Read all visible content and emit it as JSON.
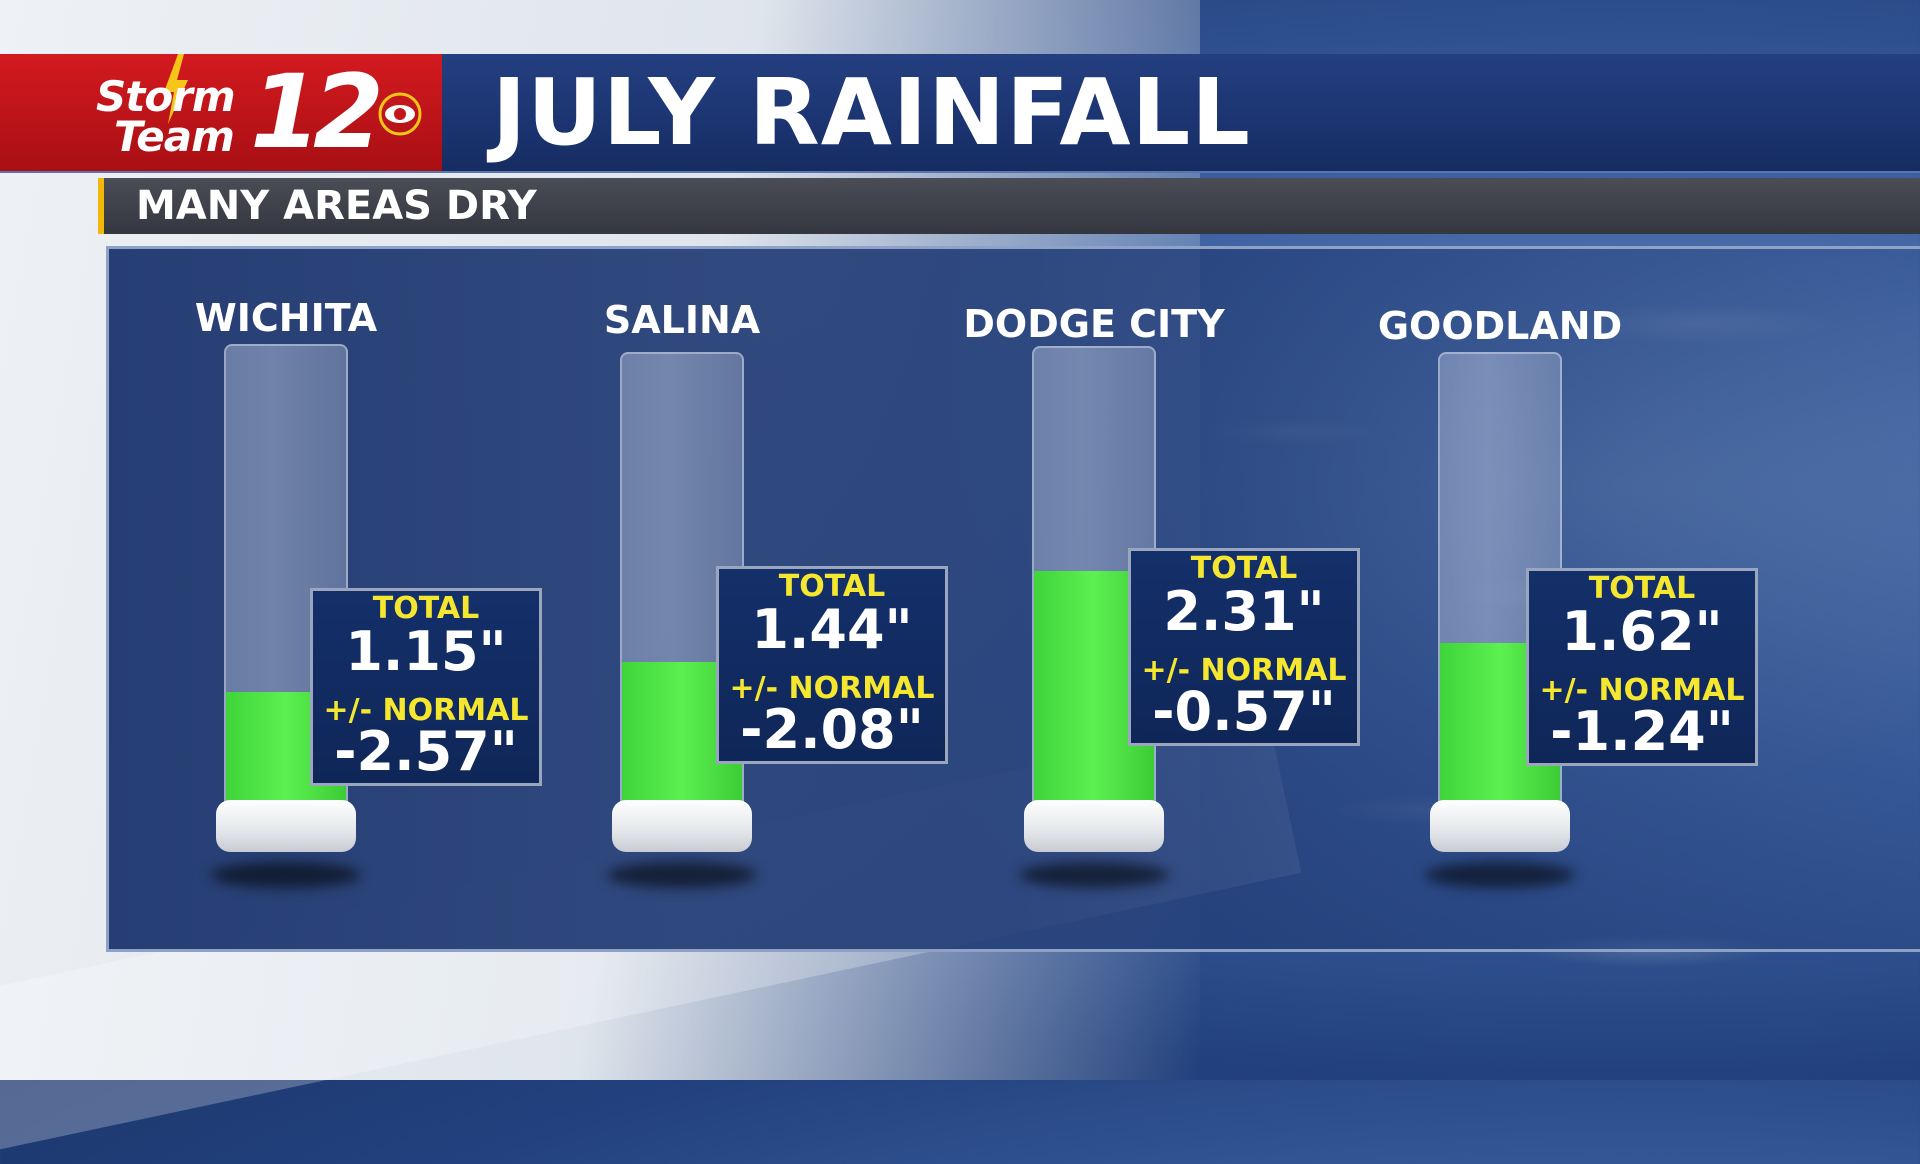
{
  "header": {
    "logo_line1": "Storm",
    "logo_line2": "Team",
    "logo_number": "12",
    "title": "JULY RAINFALL"
  },
  "subtitle": "MANY AREAS DRY",
  "colors": {
    "header_blue": "#1c3572",
    "logo_red": "#c4151b",
    "accent_yellow": "#f2b807",
    "label_yellow": "#f5e630",
    "gauge_green": "#4ef042"
  },
  "card_labels": {
    "total": "TOTAL",
    "departure": "+/- NORMAL"
  },
  "chart_data": {
    "type": "bar",
    "categories": [
      "WICHITA",
      "SALINA",
      "DODGE CITY",
      "GOODLAND"
    ],
    "series": [
      {
        "name": "TOTAL",
        "values": [
          1.15,
          1.44,
          2.31,
          1.62
        ]
      },
      {
        "name": "+/- NORMAL",
        "values": [
          -2.57,
          -2.08,
          -0.57,
          -1.24
        ]
      }
    ],
    "value_labels": {
      "total": [
        "1.15\"",
        "1.44\"",
        "2.31\"",
        "1.62\""
      ],
      "departure": [
        "-2.57\"",
        "-2.08\"",
        "-0.57\"",
        "-1.24\""
      ]
    },
    "ylim": [
      0,
      4.5
    ]
  }
}
